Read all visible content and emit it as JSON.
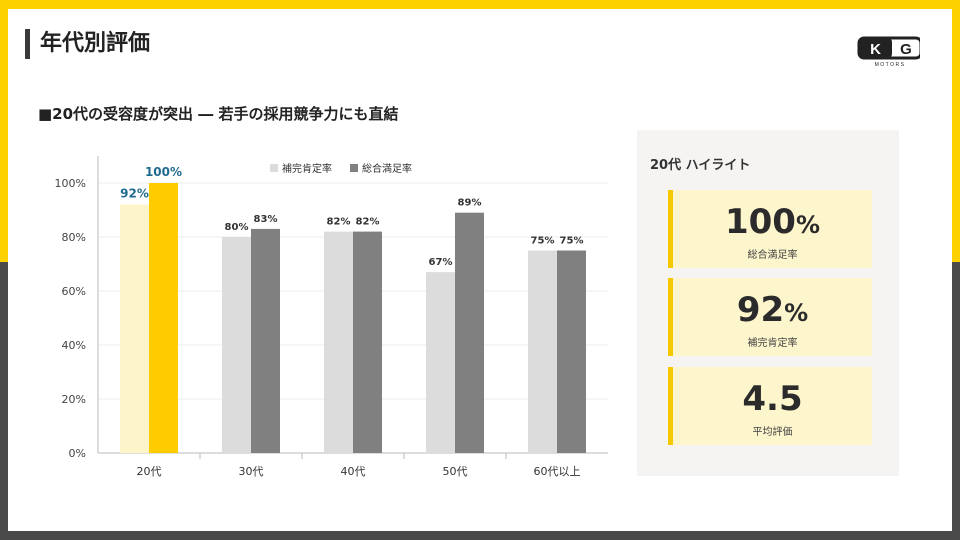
{
  "page": {
    "title": "年代別評価",
    "subtitle": "■20代の受容度が突出 ― 若手の採用競争力にも直結",
    "logo": {
      "text": "KG",
      "subtext": "MOTORS"
    }
  },
  "highlight": {
    "title": "20代 ハイライト",
    "cards": [
      {
        "value": "100",
        "unit": "%",
        "label": "総合満足率"
      },
      {
        "value": "92",
        "unit": "%",
        "label": "補完肯定率"
      },
      {
        "value": "4.5",
        "unit": "",
        "label": "平均評価"
      }
    ]
  },
  "colors": {
    "accent": "#fdd000",
    "series1_default": "#dcdcdc",
    "series2_default": "#808080",
    "series1_highlight": "#fdf4c9",
    "series2_highlight": "#ffcc00",
    "highlight_label": "#1f6b8f"
  },
  "chart_data": {
    "type": "bar",
    "title": "",
    "xlabel": "",
    "ylabel": "",
    "categories": [
      "20代",
      "30代",
      "40代",
      "50代",
      "60代以上"
    ],
    "series": [
      {
        "name": "補完肯定率",
        "values": [
          92,
          80,
          82,
          67,
          75
        ],
        "labels": [
          "92%",
          "80%",
          "82%",
          "67%",
          "75%"
        ]
      },
      {
        "name": "総合満足率",
        "values": [
          100,
          83,
          82,
          89,
          75
        ],
        "labels": [
          "100%",
          "83%",
          "82%",
          "89%",
          "75%"
        ]
      }
    ],
    "highlight_category": "20代",
    "ylim": [
      0,
      100
    ],
    "yticks": [
      0,
      20,
      40,
      60,
      80,
      100
    ],
    "ytick_labels": [
      "0%",
      "20%",
      "40%",
      "60%",
      "80%",
      "100%"
    ],
    "grid": true,
    "legend_position": "top-center",
    "data_labels": true
  }
}
